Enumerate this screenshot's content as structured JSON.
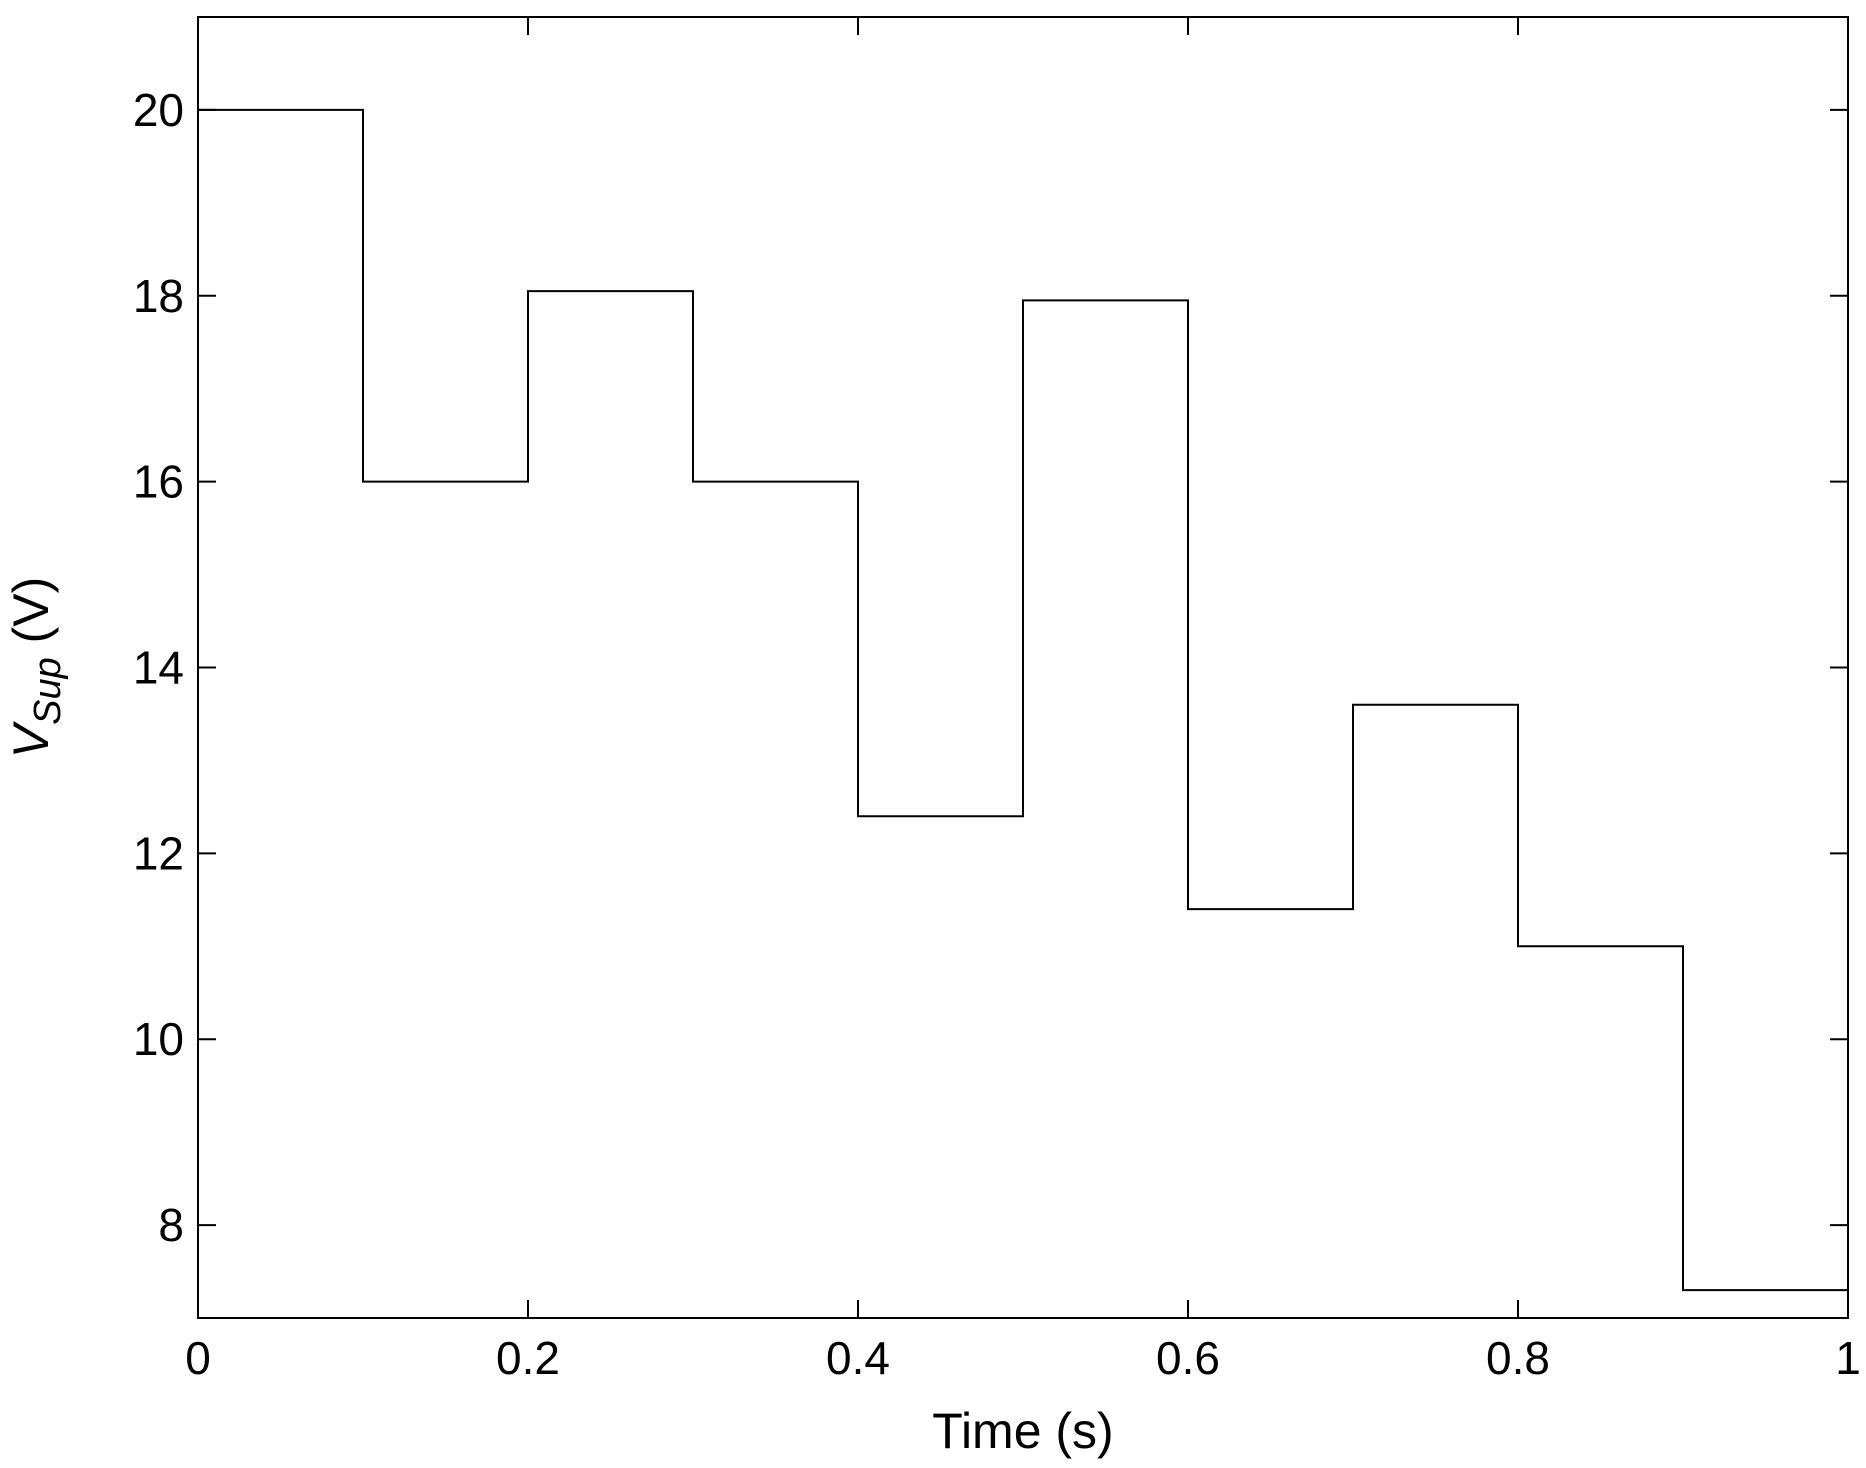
{
  "chart_data": {
    "type": "line",
    "step": true,
    "title": "",
    "xlabel": "Time (s)",
    "ylabel": {
      "main": "V",
      "subscript": "Sup",
      "unit": " (V)"
    },
    "xlim": [
      0,
      1
    ],
    "ylim": [
      7,
      21
    ],
    "xticks": [
      0,
      0.2,
      0.4,
      0.6,
      0.8,
      1
    ],
    "xtick_labels": [
      "0",
      "0.2",
      "0.4",
      "0.6",
      "0.8",
      "1"
    ],
    "yticks": [
      8,
      10,
      12,
      14,
      16,
      18,
      20
    ],
    "ytick_labels": [
      "8",
      "10",
      "12",
      "14",
      "16",
      "18",
      "20"
    ],
    "grid": false,
    "line_color": "#000000",
    "series": [
      {
        "x": [
          0,
          0.1,
          0.1,
          0.2,
          0.2,
          0.3,
          0.3,
          0.4,
          0.4,
          0.5,
          0.5,
          0.6,
          0.6,
          0.7,
          0.7,
          0.8,
          0.8,
          0.9,
          0.9,
          1.0
        ],
        "values": [
          20,
          20,
          16,
          16,
          18.05,
          18.05,
          16,
          16,
          12.4,
          12.4,
          17.95,
          17.95,
          11.4,
          11.4,
          13.6,
          13.6,
          11.0,
          11.0,
          7.3,
          7.3
        ]
      }
    ]
  }
}
